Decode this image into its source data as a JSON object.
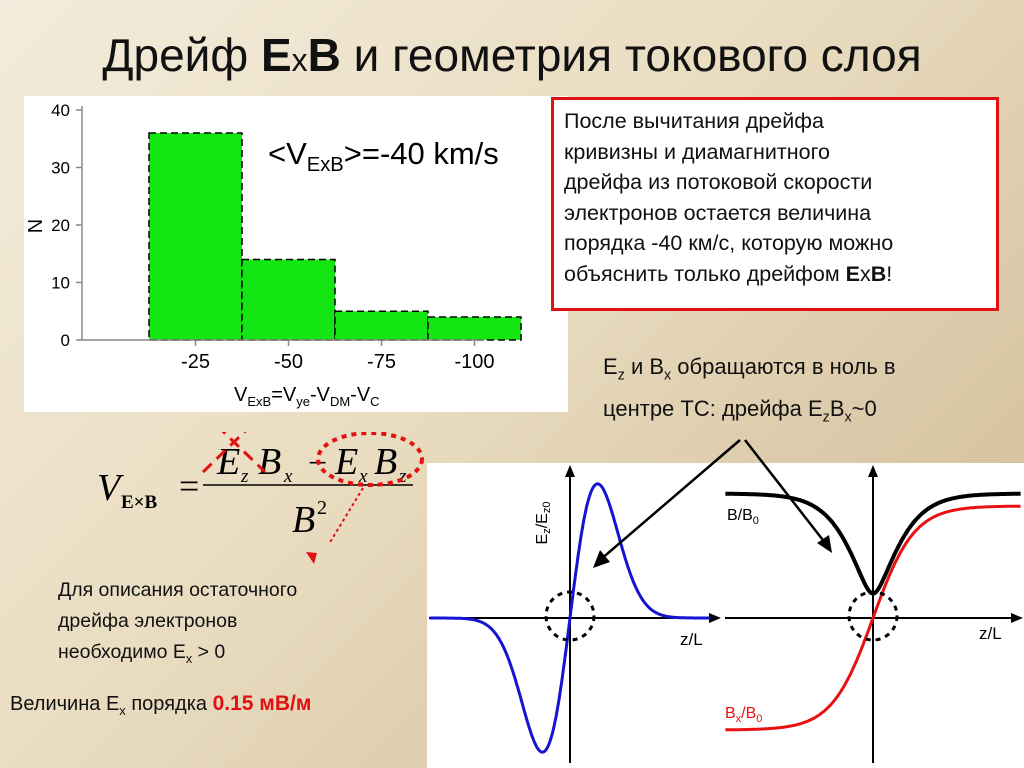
{
  "title": {
    "pre": "Дрейф ",
    "E": "E",
    "x": "x",
    "B": "B",
    "post": " и геометрия токового слоя"
  },
  "chart_data": {
    "type": "bar",
    "categories": [
      "-25",
      "-50",
      "-75",
      "-100"
    ],
    "values": [
      36,
      14,
      5,
      4
    ],
    "ylabel": "N",
    "ylim": [
      0,
      40
    ],
    "yticks": [
      "0",
      "10",
      "20",
      "30",
      "40"
    ],
    "mean_label": {
      "pre": "<V",
      "sub": "ExB",
      "post": ">=-40 km/s"
    },
    "bar_color": "#14e614"
  },
  "vexb_eq": {
    "v1": "V",
    "s1": "ExB",
    "e1": "=V",
    "s2": "ye",
    "e2": "-V",
    "s3": "DM",
    "e3": "-V",
    "s4": "C"
  },
  "note": {
    "lines": [
      "После вычитания дрейфа",
      "кривизны и диамагнитного",
      "дрейфа из потоковой скорости",
      "электронов остается величина",
      "порядка -40 км/с, которую можно"
    ],
    "last_pre": "объяснить только дрейфом ",
    "last_E": "E",
    "last_x": "x",
    "last_B": "B",
    "last_post": "!"
  },
  "ez_note": {
    "l1a": "E",
    "l1s": "z",
    "l1b": " и B",
    "l1s2": "x",
    "l1c": " обращаются в ноль в",
    "l2a": "центре ТС: дрейфа E",
    "l2s": "z",
    "l2b": "B",
    "l2s2": "x",
    "l2c": "~0"
  },
  "formula": {
    "lhs": "V",
    "lhs_sub": "E×B",
    "eq": "=",
    "n1": "E",
    "n1s": "z",
    "n2": "B",
    "n2s": "x",
    "minus": "−",
    "n3": "E",
    "n3s": "x",
    "n4": "B",
    "n4s": "z",
    "den": "B",
    "den_sup": "2"
  },
  "desc": {
    "l1": "Для описания остаточного",
    "l2": "дрейфа электронов",
    "l3a": "необходимо E",
    "l3s": "x",
    "l3b": " > 0"
  },
  "magnitude": {
    "pre": "Величина E",
    "sub": "x",
    "mid": "  порядка ",
    "value": "0.15 мВ/м"
  },
  "curves": {
    "left_ylabel": {
      "a": "E",
      "as": "z",
      "b": "/E",
      "bs": "z0"
    },
    "left_xlabel": "z/L",
    "right_xlabel": "z/L",
    "b_label": {
      "a": "B/B",
      "as": "0"
    },
    "bx_label": {
      "a": "B",
      "as": "x",
      "b": "/B",
      "bs": "0"
    }
  },
  "colors": {
    "accent_red": "#e21010",
    "bar_green": "#14e614",
    "ez_blue": "#1414d2",
    "bx_red": "#e81010"
  }
}
